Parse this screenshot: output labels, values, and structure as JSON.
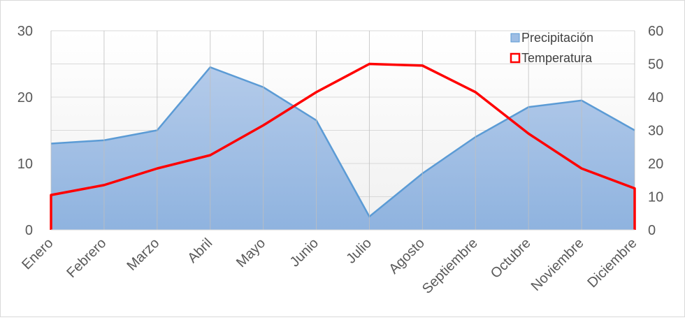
{
  "chart_data": {
    "type": "area",
    "categories": [
      "Enero",
      "Febrero",
      "Marzo",
      "Abril",
      "Mayo",
      "Junio",
      "Julio",
      "Agosto",
      "Septiembre",
      "Octubre",
      "Noviembre",
      "Diciembre"
    ],
    "series": [
      {
        "name": "Precipitación",
        "type": "area",
        "axis": "left",
        "color": "#5b9bd5",
        "values": [
          13,
          13.5,
          15,
          24.5,
          21.5,
          16.5,
          2,
          8.5,
          14,
          18.5,
          19.5,
          15
        ]
      },
      {
        "name": "Temperatura",
        "type": "line",
        "axis": "right",
        "color": "#ff0000",
        "values": [
          10.5,
          13.5,
          18.5,
          22.5,
          31.5,
          41.5,
          50,
          49.5,
          41.5,
          29,
          18.5,
          12.5
        ]
      }
    ],
    "y_left": {
      "range": [
        0,
        30
      ],
      "ticks": [
        "0",
        "10",
        "20",
        "30"
      ]
    },
    "y_right": {
      "range": [
        0,
        60
      ],
      "ticks": [
        "0",
        "10",
        "20",
        "30",
        "40",
        "50",
        "60"
      ]
    },
    "grid": true,
    "legend": "top-right",
    "title": "",
    "xlabel": "",
    "ylabel": ""
  }
}
